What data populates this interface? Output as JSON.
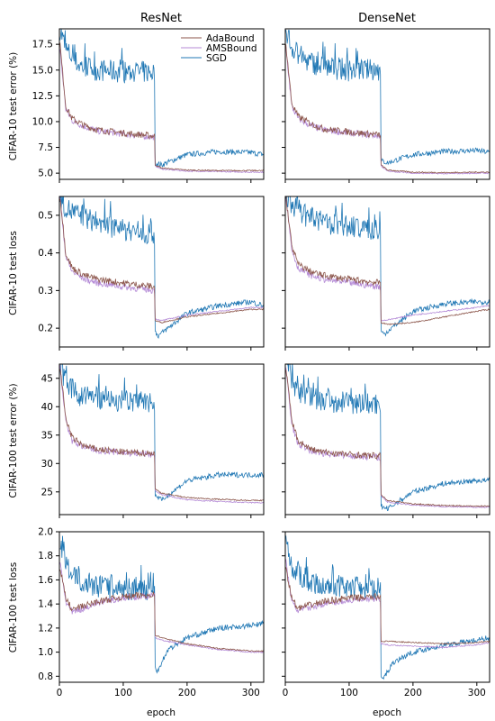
{
  "figure": {
    "columns": [
      "ResNet",
      "DenseNet"
    ],
    "rows": [
      {
        "ylabel": "CIFAR-10 test error (%)"
      },
      {
        "ylabel": "CIFAR-10 test loss"
      },
      {
        "ylabel": "CIFAR-100 test error (%)"
      },
      {
        "ylabel": "CIFAR-100 test loss"
      }
    ],
    "xlabel": "epoch",
    "legend": {
      "entries": [
        "AdaBound",
        "AMSBound",
        "SGD"
      ],
      "placement": "top-right of first panel"
    }
  },
  "colors": {
    "AdaBound": "#8c564b",
    "AMSBound": "#b48ad6",
    "SGD": "#1f77b4"
  },
  "chart_data": [
    {
      "type": "line",
      "title": "ResNet",
      "ylabel": "CIFAR-10 test error (%)",
      "xlabel": "",
      "xlim": [
        0,
        320
      ],
      "ylim": [
        4.4,
        19
      ],
      "yticks": [
        "5.0",
        "7.5",
        "10.0",
        "12.5",
        "15.0",
        "17.5"
      ],
      "xticks": [],
      "series": [
        {
          "name": "AdaBound",
          "x": [
            1,
            10,
            20,
            40,
            60,
            100,
            149,
            150,
            160,
            200,
            250,
            300,
            320
          ],
          "y": [
            17.5,
            11.5,
            10.3,
            9.6,
            9.2,
            8.9,
            8.6,
            5.8,
            5.5,
            5.3,
            5.25,
            5.25,
            5.25
          ]
        },
        {
          "name": "AMSBound",
          "x": [
            1,
            10,
            20,
            40,
            60,
            100,
            149,
            150,
            160,
            200,
            250,
            300,
            320
          ],
          "y": [
            17.0,
            11.2,
            10.1,
            9.5,
            9.1,
            8.8,
            8.5,
            5.7,
            5.4,
            5.2,
            5.15,
            5.1,
            5.1
          ]
        },
        {
          "name": "SGD",
          "x": [
            1,
            10,
            30,
            60,
            100,
            149,
            150,
            160,
            200,
            250,
            300,
            320
          ],
          "y": [
            19.0,
            17.0,
            15.5,
            15.0,
            14.8,
            14.8,
            6.0,
            5.8,
            6.8,
            7.1,
            7.0,
            6.8
          ]
        }
      ]
    },
    {
      "type": "line",
      "title": "DenseNet",
      "ylabel": "",
      "xlabel": "",
      "xlim": [
        0,
        320
      ],
      "ylim": [
        4.4,
        19
      ],
      "yticks": [],
      "xticks": [],
      "series": [
        {
          "name": "AdaBound",
          "x": [
            1,
            10,
            20,
            40,
            60,
            100,
            149,
            150,
            160,
            200,
            250,
            300,
            320
          ],
          "y": [
            17.5,
            11.8,
            10.5,
            9.8,
            9.3,
            9.0,
            8.7,
            5.8,
            5.3,
            5.1,
            5.05,
            5.1,
            5.1
          ]
        },
        {
          "name": "AMSBound",
          "x": [
            1,
            10,
            20,
            40,
            60,
            100,
            149,
            150,
            160,
            200,
            250,
            300,
            320
          ],
          "y": [
            17.2,
            11.5,
            10.3,
            9.6,
            9.2,
            8.9,
            8.6,
            5.7,
            5.2,
            5.0,
            4.95,
            5.0,
            5.0
          ]
        },
        {
          "name": "SGD",
          "x": [
            1,
            10,
            30,
            60,
            100,
            149,
            150,
            160,
            200,
            250,
            300,
            320
          ],
          "y": [
            19.0,
            17.2,
            16.0,
            15.3,
            15.0,
            15.0,
            6.2,
            6.0,
            6.8,
            7.1,
            7.2,
            7.0
          ]
        }
      ]
    },
    {
      "type": "line",
      "title": "",
      "ylabel": "CIFAR-10 test loss",
      "xlabel": "",
      "xlim": [
        0,
        320
      ],
      "ylim": [
        0.15,
        0.55
      ],
      "yticks": [
        "0.2",
        "0.3",
        "0.4",
        "0.5"
      ],
      "xticks": [],
      "series": [
        {
          "name": "AdaBound",
          "x": [
            1,
            10,
            20,
            40,
            60,
            100,
            149,
            150,
            160,
            200,
            250,
            300,
            320
          ],
          "y": [
            0.55,
            0.4,
            0.36,
            0.34,
            0.33,
            0.32,
            0.31,
            0.22,
            0.215,
            0.23,
            0.24,
            0.25,
            0.25
          ]
        },
        {
          "name": "AMSBound",
          "x": [
            1,
            10,
            20,
            40,
            60,
            100,
            149,
            150,
            160,
            200,
            250,
            300,
            320
          ],
          "y": [
            0.55,
            0.39,
            0.35,
            0.33,
            0.32,
            0.31,
            0.3,
            0.225,
            0.22,
            0.235,
            0.245,
            0.255,
            0.255
          ]
        },
        {
          "name": "SGD",
          "x": [
            1,
            10,
            30,
            60,
            100,
            149,
            150,
            155,
            200,
            250,
            300,
            320
          ],
          "y": [
            0.55,
            0.52,
            0.5,
            0.48,
            0.46,
            0.45,
            0.19,
            0.18,
            0.24,
            0.26,
            0.27,
            0.26
          ]
        }
      ]
    },
    {
      "type": "line",
      "title": "",
      "ylabel": "",
      "xlabel": "",
      "xlim": [
        0,
        320
      ],
      "ylim": [
        0.15,
        0.55
      ],
      "yticks": [],
      "xticks": [],
      "series": [
        {
          "name": "AdaBound",
          "x": [
            1,
            10,
            20,
            40,
            60,
            100,
            149,
            150,
            160,
            200,
            250,
            300,
            320
          ],
          "y": [
            0.55,
            0.42,
            0.37,
            0.35,
            0.34,
            0.33,
            0.32,
            0.215,
            0.21,
            0.215,
            0.23,
            0.245,
            0.25
          ]
        },
        {
          "name": "AMSBound",
          "x": [
            1,
            10,
            20,
            40,
            60,
            100,
            149,
            150,
            160,
            200,
            250,
            300,
            320
          ],
          "y": [
            0.55,
            0.41,
            0.36,
            0.34,
            0.33,
            0.32,
            0.31,
            0.22,
            0.222,
            0.235,
            0.245,
            0.255,
            0.26
          ]
        },
        {
          "name": "SGD",
          "x": [
            1,
            10,
            30,
            60,
            100,
            149,
            150,
            155,
            200,
            250,
            300,
            320
          ],
          "y": [
            0.55,
            0.53,
            0.5,
            0.48,
            0.47,
            0.46,
            0.19,
            0.185,
            0.245,
            0.265,
            0.27,
            0.27
          ]
        }
      ]
    },
    {
      "type": "line",
      "title": "",
      "ylabel": "CIFAR-100 test error (%)",
      "xlabel": "",
      "xlim": [
        0,
        320
      ],
      "ylim": [
        21,
        47.5
      ],
      "yticks": [
        "25",
        "30",
        "35",
        "40",
        "45"
      ],
      "xticks": [],
      "series": [
        {
          "name": "AdaBound",
          "x": [
            1,
            10,
            20,
            40,
            60,
            100,
            149,
            150,
            160,
            200,
            250,
            300,
            320
          ],
          "y": [
            47,
            38,
            34.5,
            33.0,
            32.5,
            32.0,
            31.8,
            25.5,
            24.8,
            24.0,
            23.7,
            23.5,
            23.5
          ]
        },
        {
          "name": "AMSBound",
          "x": [
            1,
            10,
            20,
            40,
            60,
            100,
            149,
            150,
            160,
            200,
            250,
            300,
            320
          ],
          "y": [
            47,
            37.5,
            34.0,
            32.8,
            32.3,
            31.9,
            31.6,
            25.2,
            24.5,
            23.6,
            23.3,
            23.1,
            23.1
          ]
        },
        {
          "name": "SGD",
          "x": [
            1,
            10,
            30,
            60,
            100,
            149,
            150,
            160,
            200,
            250,
            300,
            320
          ],
          "y": [
            47.5,
            44,
            42,
            41.5,
            41,
            41,
            24.5,
            23.5,
            27,
            28,
            28,
            28
          ]
        }
      ]
    },
    {
      "type": "line",
      "title": "",
      "ylabel": "",
      "xlabel": "",
      "xlim": [
        0,
        320
      ],
      "ylim": [
        21,
        47.5
      ],
      "yticks": [],
      "xticks": [],
      "series": [
        {
          "name": "AdaBound",
          "x": [
            1,
            10,
            20,
            40,
            60,
            100,
            149,
            150,
            160,
            200,
            250,
            300,
            320
          ],
          "y": [
            47,
            37.5,
            34.0,
            32.5,
            32.0,
            31.6,
            31.3,
            24.5,
            23.5,
            22.9,
            22.6,
            22.5,
            22.5
          ]
        },
        {
          "name": "AMSBound",
          "x": [
            1,
            10,
            20,
            40,
            60,
            100,
            149,
            150,
            160,
            200,
            250,
            300,
            320
          ],
          "y": [
            47,
            37.0,
            33.5,
            32.2,
            31.8,
            31.4,
            31.1,
            24.3,
            23.2,
            22.7,
            22.4,
            22.3,
            22.3
          ]
        },
        {
          "name": "SGD",
          "x": [
            1,
            10,
            30,
            60,
            100,
            149,
            150,
            160,
            200,
            250,
            300,
            320
          ],
          "y": [
            47.5,
            44,
            42,
            41.0,
            40.5,
            40.5,
            22.5,
            22.0,
            25,
            26.5,
            27,
            27
          ]
        }
      ]
    },
    {
      "type": "line",
      "title": "",
      "ylabel": "CIFAR-100 test loss",
      "xlabel": "epoch",
      "xlim": [
        0,
        320
      ],
      "ylim": [
        0.75,
        2.0
      ],
      "yticks": [
        "0.8",
        "1.0",
        "1.2",
        "1.4",
        "1.6",
        "1.8",
        "2.0"
      ],
      "xticks": [
        "0",
        "100",
        "200",
        "300"
      ],
      "series": [
        {
          "name": "AdaBound",
          "x": [
            1,
            10,
            20,
            30,
            60,
            100,
            149,
            150,
            160,
            200,
            250,
            300,
            320
          ],
          "y": [
            1.7,
            1.45,
            1.35,
            1.37,
            1.42,
            1.46,
            1.48,
            1.14,
            1.12,
            1.07,
            1.03,
            1.01,
            1.01
          ]
        },
        {
          "name": "AMSBound",
          "x": [
            1,
            10,
            20,
            30,
            60,
            100,
            149,
            150,
            160,
            200,
            250,
            300,
            320
          ],
          "y": [
            1.75,
            1.42,
            1.33,
            1.35,
            1.41,
            1.45,
            1.47,
            1.12,
            1.1,
            1.06,
            1.02,
            1.0,
            1.0
          ]
        },
        {
          "name": "SGD",
          "x": [
            1,
            10,
            30,
            60,
            100,
            149,
            150,
            152,
            170,
            200,
            250,
            300,
            320
          ],
          "y": [
            1.95,
            1.7,
            1.6,
            1.55,
            1.52,
            1.52,
            0.87,
            0.83,
            1.02,
            1.12,
            1.2,
            1.22,
            1.24
          ]
        }
      ]
    },
    {
      "type": "line",
      "title": "",
      "ylabel": "",
      "xlabel": "epoch",
      "xlim": [
        0,
        320
      ],
      "ylim": [
        0.75,
        2.0
      ],
      "yticks": [],
      "xticks": [
        "0",
        "100",
        "200",
        "300"
      ],
      "series": [
        {
          "name": "AdaBound",
          "x": [
            1,
            10,
            20,
            30,
            60,
            100,
            149,
            150,
            160,
            200,
            250,
            300,
            320
          ],
          "y": [
            1.7,
            1.45,
            1.36,
            1.38,
            1.42,
            1.45,
            1.46,
            1.09,
            1.09,
            1.08,
            1.07,
            1.08,
            1.09
          ]
        },
        {
          "name": "AMSBound",
          "x": [
            1,
            10,
            20,
            30,
            60,
            100,
            149,
            150,
            160,
            200,
            250,
            300,
            320
          ],
          "y": [
            1.75,
            1.42,
            1.34,
            1.36,
            1.4,
            1.43,
            1.44,
            1.07,
            1.06,
            1.05,
            1.04,
            1.06,
            1.08
          ]
        },
        {
          "name": "SGD",
          "x": [
            1,
            10,
            30,
            60,
            100,
            149,
            150,
            152,
            170,
            200,
            250,
            300,
            320
          ],
          "y": [
            1.95,
            1.68,
            1.6,
            1.56,
            1.54,
            1.52,
            0.8,
            0.77,
            0.92,
            1.0,
            1.06,
            1.1,
            1.12
          ]
        }
      ]
    }
  ]
}
